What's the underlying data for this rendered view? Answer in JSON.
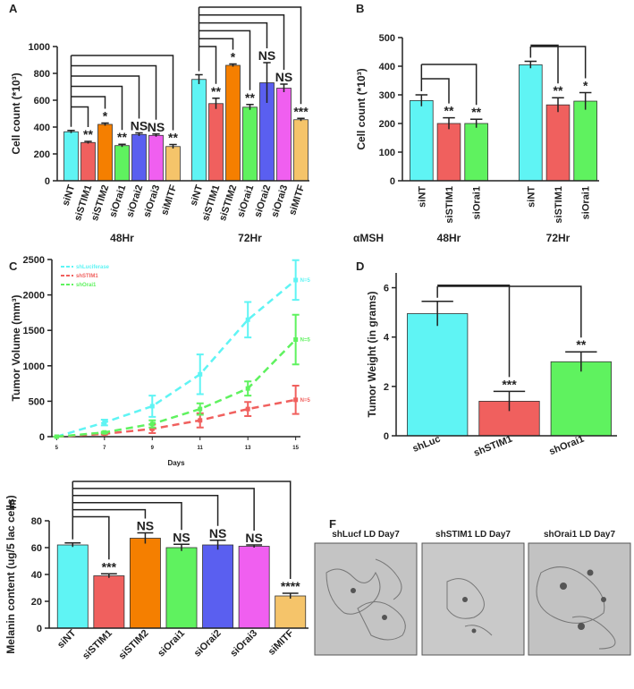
{
  "chart_data": [
    {
      "type": "bar",
      "panel_label": "A",
      "y_label": "Cell count (*10³)",
      "categories": [
        "siNT",
        "siSTIM1",
        "siSTIM2",
        "siOrai1",
        "siOrai2",
        "siOrai3",
        "siMITF"
      ],
      "colors": [
        "#5ff4f4",
        "#f0605e",
        "#f57f00",
        "#5ff25f",
        "#5a5ff0",
        "#f05ff0",
        "#f5c46a"
      ],
      "groups": [
        {
          "name": "48Hr",
          "values": [
            365,
            285,
            420,
            262,
            345,
            338,
            255
          ],
          "errors": [
            10,
            8,
            10,
            10,
            12,
            10,
            15
          ],
          "annotations": [
            null,
            "**",
            "*",
            "**",
            "NS",
            "NS",
            "**"
          ]
        },
        {
          "name": "72Hr",
          "values": [
            755,
            575,
            860,
            548,
            730,
            690,
            455
          ],
          "errors": [
            35,
            40,
            10,
            20,
            150,
            30,
            10
          ],
          "annotations": [
            null,
            "**",
            "*",
            "**",
            "NS",
            "NS",
            "***"
          ]
        }
      ],
      "ylim": [
        0,
        1000
      ],
      "yticks": [
        0,
        200,
        400,
        600,
        800,
        1000
      ],
      "brackets": true
    },
    {
      "type": "bar",
      "panel_label": "B",
      "y_label": "Cell count (*10³)",
      "treatment_label": "αMSH",
      "categories": [
        "siNT",
        "siSTIM1",
        "siOrai1"
      ],
      "colors": [
        "#5ff4f4",
        "#f0605e",
        "#5ff25f"
      ],
      "groups": [
        {
          "name": "48Hr",
          "values": [
            280,
            200,
            200
          ],
          "errors": [
            20,
            20,
            15
          ],
          "annotations": [
            null,
            "**",
            "**"
          ]
        },
        {
          "name": "72Hr",
          "values": [
            405,
            265,
            278
          ],
          "errors": [
            12,
            25,
            30
          ],
          "annotations": [
            null,
            "**",
            "*"
          ]
        }
      ],
      "ylim": [
        0,
        500
      ],
      "yticks": [
        0,
        100,
        200,
        300,
        400,
        500
      ],
      "brackets": true
    },
    {
      "type": "line",
      "panel_label": "C",
      "x_label": "Days",
      "y_label": "Tumor Volume (mm³)",
      "x": [
        5,
        7,
        9,
        11,
        13,
        15
      ],
      "series": [
        {
          "name": "shLuciferase",
          "color": "#5ff4f4",
          "values": [
            0,
            200,
            430,
            880,
            1650,
            2210
          ],
          "errors": [
            0,
            40,
            150,
            280,
            250,
            280
          ],
          "end_label": "N=5"
        },
        {
          "name": "shSTIM1",
          "color": "#f0605e",
          "values": [
            0,
            40,
            110,
            230,
            390,
            520
          ],
          "errors": [
            0,
            10,
            60,
            100,
            100,
            200
          ],
          "end_label": "N=5"
        },
        {
          "name": "shOrai1",
          "color": "#5ff25f",
          "values": [
            0,
            60,
            180,
            390,
            680,
            1370
          ],
          "errors": [
            0,
            10,
            50,
            80,
            100,
            350
          ],
          "end_label": "N=5"
        }
      ],
      "xlim": [
        4.8,
        15.2
      ],
      "xticks": [
        5,
        7,
        9,
        11,
        13,
        15
      ],
      "ylim": [
        0,
        2500
      ],
      "yticks": [
        0,
        500,
        1000,
        1500,
        2000,
        2500
      ],
      "legend": "top-left"
    },
    {
      "type": "bar",
      "panel_label": "D",
      "y_label": "Tumor Weight (in grams)",
      "categories": [
        "shLuc",
        "shSTIM1",
        "shOrai1"
      ],
      "colors": [
        "#5ff4f4",
        "#f0605e",
        "#5ff25f"
      ],
      "values": [
        4.95,
        1.4,
        3.0
      ],
      "errors": [
        0.5,
        0.4,
        0.4
      ],
      "annotations": [
        null,
        "***",
        "**"
      ],
      "ylim": [
        0,
        6.6
      ],
      "yticks": [
        0,
        2,
        4,
        6
      ],
      "brackets": true
    },
    {
      "type": "bar",
      "panel_label": "E",
      "y_label": "Melanin content (ug/5 lac cells)",
      "categories": [
        "siNT",
        "siSTIM1",
        "siSTIM2",
        "siOrai1",
        "siOrai2",
        "siOrai3",
        "siMITF"
      ],
      "colors": [
        "#5ff4f4",
        "#f0605e",
        "#f57f00",
        "#5ff25f",
        "#5a5ff0",
        "#f05ff0",
        "#f5c46a"
      ],
      "values": [
        62,
        39,
        67,
        60,
        62,
        61,
        24
      ],
      "errors": [
        1.5,
        1.5,
        4,
        2.5,
        3.5,
        1,
        2
      ],
      "annotations": [
        null,
        "***",
        "NS",
        "NS",
        "NS",
        "NS",
        "****"
      ],
      "ylim": [
        0,
        80
      ],
      "yticks": [
        0,
        20,
        40,
        60,
        80
      ],
      "brackets": true
    }
  ],
  "image_panel": {
    "panel_label": "F",
    "images": [
      "shLucf LD Day7",
      "shSTIM1 LD Day7",
      "shOrai1 LD Day7"
    ]
  }
}
